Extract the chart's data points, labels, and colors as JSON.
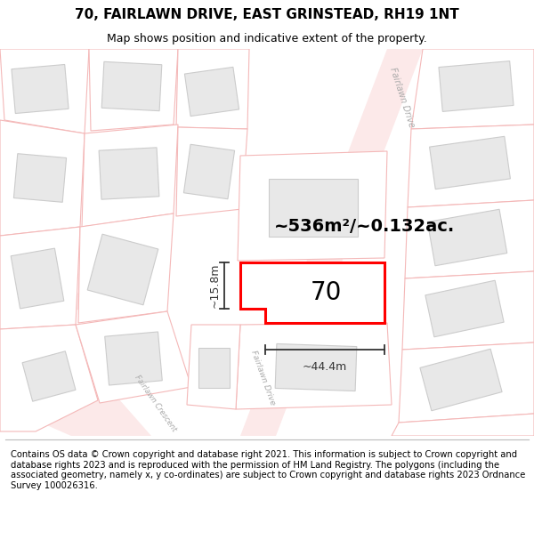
{
  "title": "70, FAIRLAWN DRIVE, EAST GRINSTEAD, RH19 1NT",
  "subtitle": "Map shows position and indicative extent of the property.",
  "footer": "Contains OS data © Crown copyright and database right 2021. This information is subject to Crown copyright and database rights 2023 and is reproduced with the permission of HM Land Registry. The polygons (including the associated geometry, namely x, y co-ordinates) are subject to Crown copyright and database rights 2023 Ordnance Survey 100026316.",
  "area_label": "~536m²/~0.132ac.",
  "width_label": "~44.4m",
  "height_label": "~15.8m",
  "plot_number": "70",
  "bg": "#ffffff",
  "map_bg": "#ffffff",
  "parcel_fill": "#ffffff",
  "parcel_ec": "#f4b8b8",
  "building_fill": "#e8e8e8",
  "building_ec": "#cccccc",
  "road_fill": "#fce9e9",
  "plot_ec": "#ff0000",
  "dim_color": "#333333",
  "road_label_color": "#aaaaaa",
  "title_fontsize": 11,
  "subtitle_fontsize": 9,
  "footer_fontsize": 7.2,
  "label_fontsize": 14,
  "number_fontsize": 20
}
